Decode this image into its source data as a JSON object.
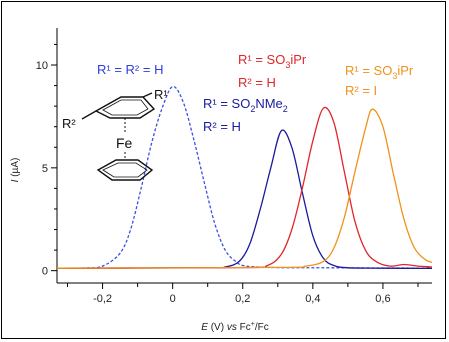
{
  "chart_data": {
    "type": "line",
    "title": "",
    "xlabel": "E (V) vs Fc+/Fc",
    "ylabel": "I (µA)",
    "xlim": [
      -0.33,
      0.74
    ],
    "ylim": [
      -0.6,
      11.8
    ],
    "x_ticks": [
      -0.2,
      0.0,
      0.2,
      0.4,
      0.6
    ],
    "x_tick_labels": [
      "-0,2",
      "0",
      "0,2",
      "0,4",
      "0,6"
    ],
    "y_ticks": [
      0,
      5,
      10
    ],
    "y_tick_labels": [
      "0",
      "5",
      "10"
    ],
    "grid": false,
    "legend": "none",
    "series": [
      {
        "color": "#3b4fe6",
        "dashed": true,
        "points": [
          [
            -0.33,
            0.12
          ],
          [
            -0.25,
            0.13
          ],
          [
            -0.2,
            0.22
          ],
          [
            -0.15,
            0.85
          ],
          [
            -0.12,
            2.0
          ],
          [
            -0.09,
            4.0
          ],
          [
            -0.06,
            6.2
          ],
          [
            -0.03,
            7.9
          ],
          [
            0.0,
            8.95
          ],
          [
            0.03,
            8.2
          ],
          [
            0.06,
            6.4
          ],
          [
            0.09,
            4.3
          ],
          [
            0.12,
            2.3
          ],
          [
            0.15,
            1.0
          ],
          [
            0.18,
            0.45
          ],
          [
            0.21,
            0.22
          ],
          [
            0.3,
            0.15
          ],
          [
            0.45,
            0.14
          ],
          [
            0.74,
            0.12
          ]
        ]
      },
      {
        "color": "#1a1a9c",
        "dashed": false,
        "points": [
          [
            -0.33,
            0.12
          ],
          [
            0.1,
            0.14
          ],
          [
            0.15,
            0.18
          ],
          [
            0.19,
            0.45
          ],
          [
            0.22,
            1.3
          ],
          [
            0.25,
            3.0
          ],
          [
            0.28,
            5.0
          ],
          [
            0.31,
            6.8
          ],
          [
            0.34,
            6.0
          ],
          [
            0.37,
            3.8
          ],
          [
            0.4,
            1.7
          ],
          [
            0.43,
            0.6
          ],
          [
            0.46,
            0.25
          ],
          [
            0.5,
            0.14
          ],
          [
            0.6,
            0.12
          ],
          [
            0.74,
            0.11
          ]
        ]
      },
      {
        "color": "#e0262b",
        "dashed": false,
        "points": [
          [
            -0.33,
            0.12
          ],
          [
            0.2,
            0.15
          ],
          [
            0.27,
            0.25
          ],
          [
            0.31,
            0.8
          ],
          [
            0.34,
            2.0
          ],
          [
            0.37,
            4.0
          ],
          [
            0.4,
            6.3
          ],
          [
            0.43,
            7.9
          ],
          [
            0.46,
            7.2
          ],
          [
            0.49,
            4.8
          ],
          [
            0.52,
            2.4
          ],
          [
            0.55,
            1.0
          ],
          [
            0.58,
            0.45
          ],
          [
            0.62,
            0.22
          ],
          [
            0.66,
            0.3
          ],
          [
            0.7,
            0.22
          ],
          [
            0.74,
            0.18
          ]
        ]
      },
      {
        "color": "#f0921a",
        "dashed": false,
        "points": [
          [
            -0.33,
            0.12
          ],
          [
            0.3,
            0.16
          ],
          [
            0.38,
            0.22
          ],
          [
            0.43,
            0.45
          ],
          [
            0.46,
            1.1
          ],
          [
            0.49,
            2.6
          ],
          [
            0.52,
            4.8
          ],
          [
            0.55,
            6.9
          ],
          [
            0.57,
            7.85
          ],
          [
            0.6,
            7.0
          ],
          [
            0.63,
            4.7
          ],
          [
            0.66,
            2.5
          ],
          [
            0.69,
            1.1
          ],
          [
            0.72,
            0.55
          ],
          [
            0.74,
            0.4
          ]
        ]
      }
    ],
    "annotations": {
      "a1": {
        "color": "#2d3fe0",
        "line1": "R¹ = R² = H"
      },
      "a2": {
        "color": "#1a1a9c",
        "line1_pre": "R¹ = SO",
        "line1_sub": "2",
        "line1_post": "NMe",
        "line1_sub2": "2",
        "line2": "R² = H"
      },
      "a3": {
        "color": "#e0262b",
        "line1_pre": "R¹ = SO",
        "line1_sub": "3",
        "line1_post": "iPr",
        "line2": "R² = H"
      },
      "a4": {
        "color": "#f0921a",
        "line1_pre": "R¹ = SO",
        "line1_sub": "3",
        "line1_post": "iPr",
        "line2": "R² = I"
      }
    },
    "structure_labels": {
      "r1": "R¹",
      "r2": "R²",
      "metal": "Fe"
    }
  }
}
